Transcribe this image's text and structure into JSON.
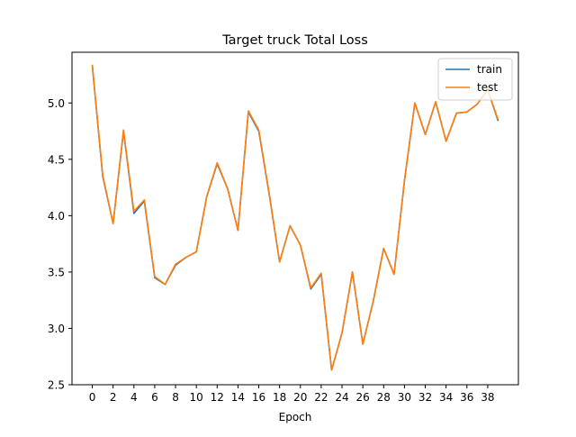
{
  "chart_data": {
    "type": "line",
    "title": "Target truck Total Loss",
    "xlabel": "Epoch",
    "ylabel": "",
    "xlim": [
      -1.95,
      40.95
    ],
    "ylim": [
      2.5,
      5.45
    ],
    "xticks": [
      0,
      2,
      4,
      6,
      8,
      10,
      12,
      14,
      16,
      18,
      20,
      22,
      24,
      26,
      28,
      30,
      32,
      34,
      36,
      38
    ],
    "yticks": [
      2.5,
      3.0,
      3.5,
      4.0,
      4.5,
      5.0
    ],
    "ytick_labels": [
      "2.5",
      "3.0",
      "3.5",
      "4.0",
      "4.5",
      "5.0"
    ],
    "grid": false,
    "legend_position": "top-right",
    "x": [
      0,
      1,
      2,
      3,
      4,
      5,
      6,
      7,
      8,
      9,
      10,
      11,
      12,
      13,
      14,
      15,
      16,
      17,
      18,
      19,
      20,
      21,
      22,
      23,
      24,
      25,
      26,
      27,
      28,
      29,
      30,
      31,
      32,
      33,
      34,
      35,
      36,
      37,
      38,
      39
    ],
    "series": [
      {
        "name": "train",
        "color": "#1f77b4",
        "values": [
          5.33,
          4.35,
          3.93,
          4.75,
          4.02,
          4.13,
          3.45,
          3.39,
          3.56,
          3.63,
          3.68,
          4.17,
          4.46,
          4.24,
          3.87,
          4.92,
          4.75,
          4.19,
          3.59,
          3.91,
          3.74,
          3.35,
          3.48,
          2.63,
          2.96,
          3.5,
          2.86,
          3.24,
          3.71,
          3.48,
          4.31,
          5.0,
          4.72,
          5.01,
          4.66,
          4.91,
          4.92,
          4.99,
          5.12,
          4.84
        ]
      },
      {
        "name": "test",
        "color": "#ff7f0e",
        "values": [
          5.34,
          4.36,
          3.93,
          4.76,
          4.04,
          4.14,
          3.46,
          3.39,
          3.57,
          3.63,
          3.68,
          4.17,
          4.47,
          4.24,
          3.87,
          4.93,
          4.76,
          4.2,
          3.59,
          3.91,
          3.74,
          3.36,
          3.49,
          2.63,
          2.96,
          3.5,
          2.86,
          3.24,
          3.71,
          3.48,
          4.31,
          5.0,
          4.72,
          5.01,
          4.66,
          4.91,
          4.92,
          4.99,
          5.12,
          4.85
        ]
      }
    ]
  }
}
